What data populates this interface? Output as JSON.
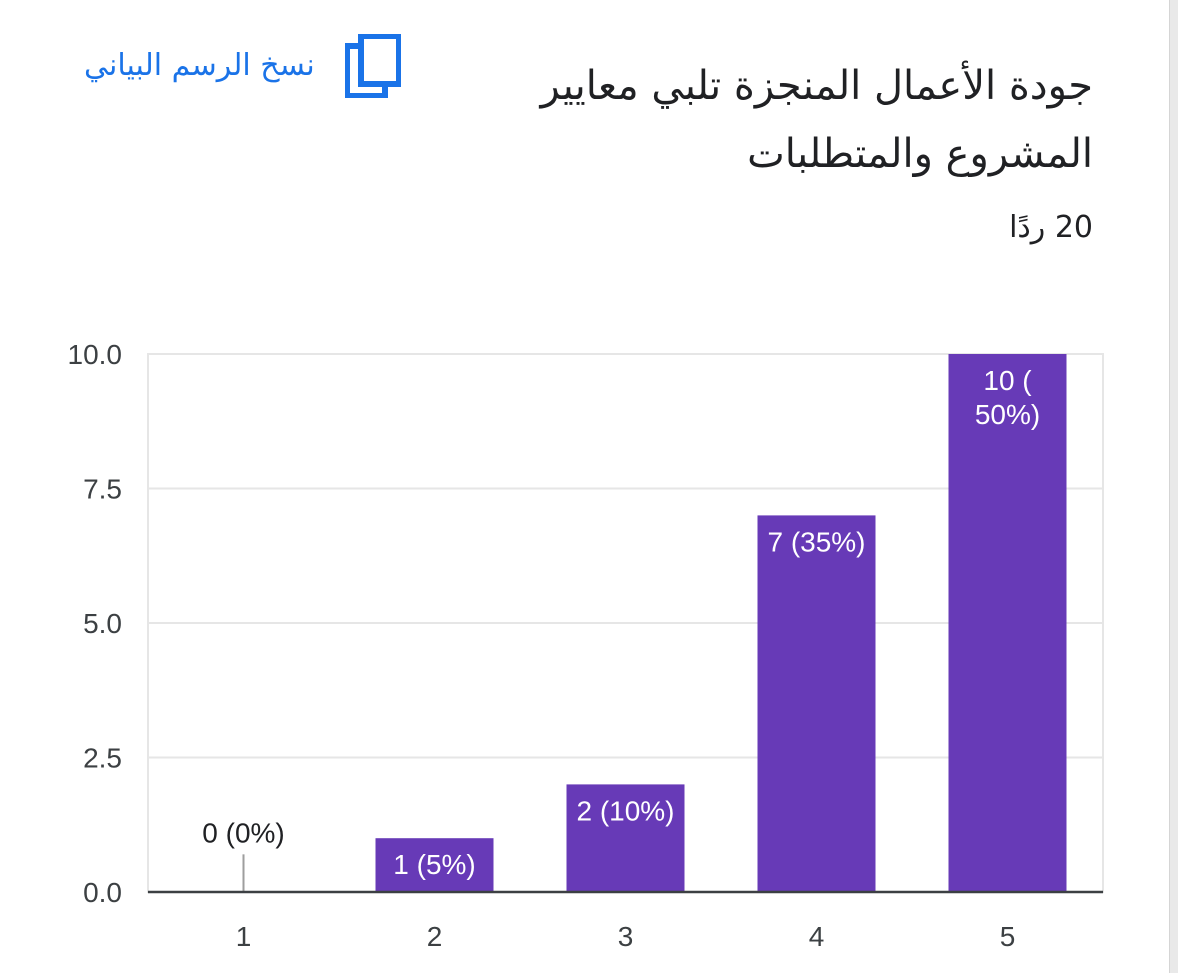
{
  "header": {
    "title": "جودة الأعمال المنجزة تلبي معايير المشروع والمتطلبات",
    "responses": "20 ردًا",
    "copy_chart_label": "نسخ الرسم البياني",
    "copy_icon": "copy-icon"
  },
  "colors": {
    "bar": "#673ab7",
    "accent": "#1a73e8",
    "grid": "#e6e6e6",
    "axis": "#3c4043"
  },
  "chart_data": {
    "type": "bar",
    "categories": [
      "1",
      "2",
      "3",
      "4",
      "5"
    ],
    "values": [
      0,
      1,
      2,
      7,
      10
    ],
    "data_labels": [
      "0 (0%)",
      "1 (5%)",
      "2 (10%)",
      "7 (35%)",
      "10 (50%)"
    ],
    "y_ticks": [
      "0.0",
      "2.5",
      "5.0",
      "7.5",
      "10.0"
    ],
    "ylim": [
      0,
      10
    ],
    "grid": true,
    "legend": "none"
  }
}
